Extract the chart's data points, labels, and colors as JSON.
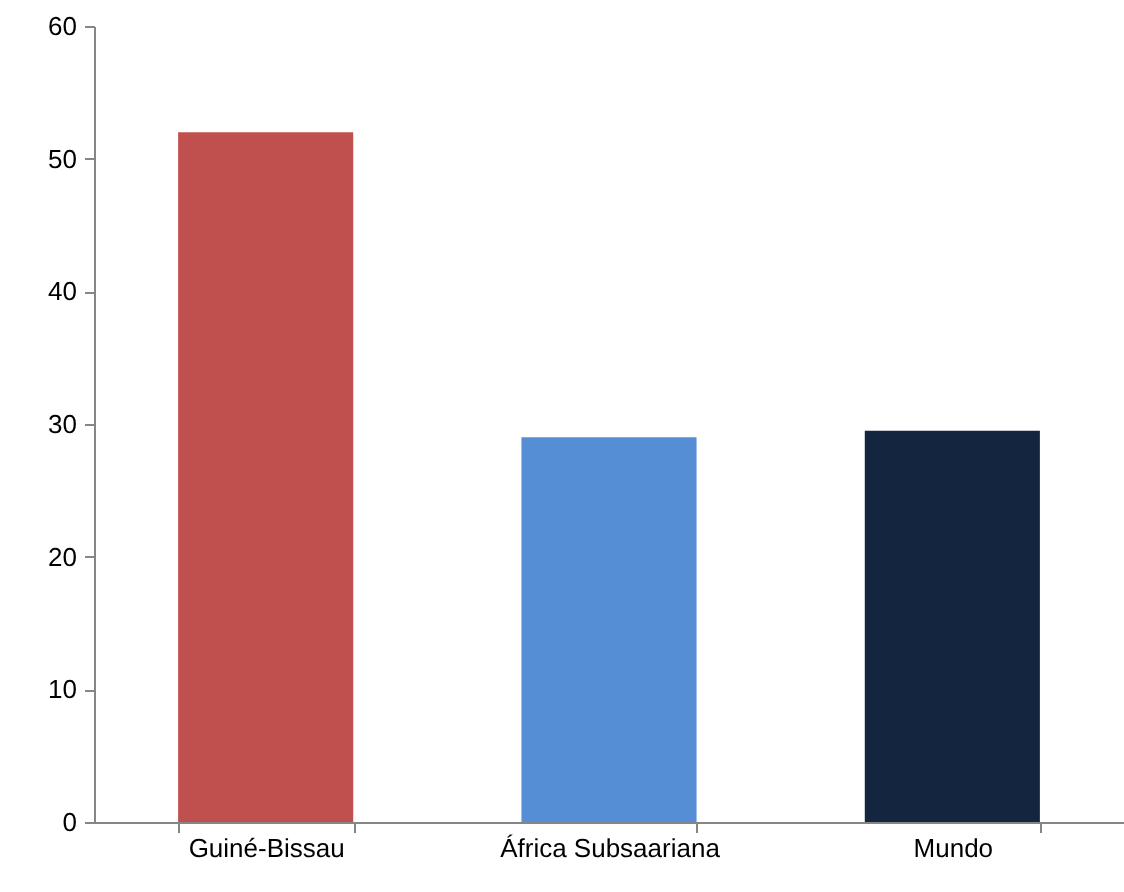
{
  "chart_data": {
    "type": "bar",
    "categories": [
      "Guiné-Bissau",
      "África Subsaariana",
      "Mundo"
    ],
    "values": [
      52,
      29,
      29.5
    ],
    "colors": [
      "#c0504d",
      "#558ed5",
      "#14253f"
    ],
    "ylim": [
      0,
      60
    ],
    "yticks": [
      0,
      10,
      20,
      30,
      40,
      50,
      60
    ],
    "grid": false
  }
}
